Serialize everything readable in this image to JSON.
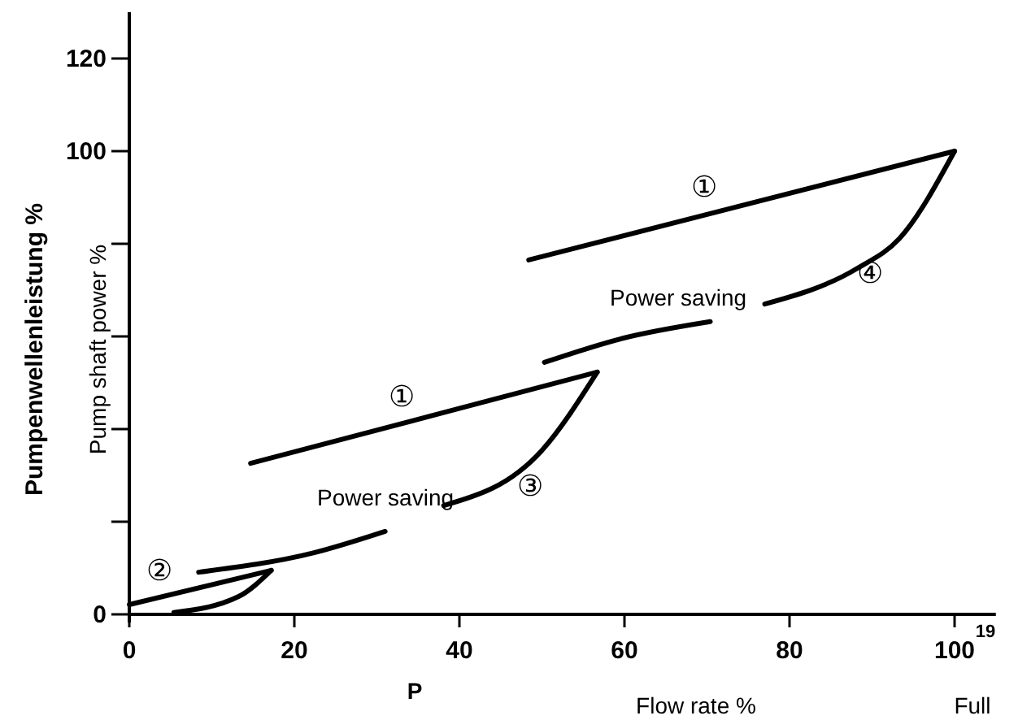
{
  "chart_data": {
    "type": "line",
    "ylabel": "Pumpenwellenleistung  %",
    "xlabel": "Flow rate %",
    "xlim": [
      0,
      105
    ],
    "ylim": [
      0,
      130
    ],
    "xticks": [
      0,
      20,
      40,
      60,
      80,
      100
    ],
    "yticks": [
      0,
      {
        "value": 20,
        "label": null
      },
      {
        "value": 40,
        "label": null
      },
      {
        "value": 60,
        "label": null
      },
      {
        "value": 80,
        "label": null
      },
      {
        "value": 100,
        "label": "100"
      },
      120
    ],
    "grid": false,
    "marker": "none",
    "line_style": "solid",
    "series": [
      {
        "color": "#000000",
        "x": [
          0,
          17.2
        ],
        "values": [
          2.1,
          9.5
        ]
      },
      {
        "color": "#000000",
        "x": [
          5.4,
          13.3,
          17.2
        ],
        "values": [
          0.4,
          3.9,
          9.5
        ]
      },
      {
        "color": "#000000",
        "x": [
          8.4,
          22.4,
          31
        ],
        "values": [
          9.1,
          13.3,
          17.9
        ]
      },
      {
        "color": "#000000",
        "x": [
          14.7,
          56.7
        ],
        "values": [
          32.6,
          52.3
        ]
      },
      {
        "color": "#000000",
        "x": [
          38.1,
          50,
          56.7
        ],
        "values": [
          23.5,
          35.4,
          52.3
        ]
      },
      {
        "color": "#000000",
        "x": [
          50.3,
          59.8,
          70.4
        ],
        "values": [
          54.4,
          59.6,
          63.2
        ]
      },
      {
        "color": "#000000",
        "x": [
          48.4,
          100
        ],
        "values": [
          76.5,
          100
        ]
      },
      {
        "color": "#000000",
        "x": [
          77,
          88.2,
          93.3,
          100
        ],
        "values": [
          67,
          74.7,
          81.1,
          100
        ]
      }
    ],
    "annotations": [
      "②",
      "①",
      "③",
      "Power saving",
      "①",
      "④",
      "Power saving",
      "Pump shaft power %",
      "P",
      "Full",
      "19"
    ]
  }
}
